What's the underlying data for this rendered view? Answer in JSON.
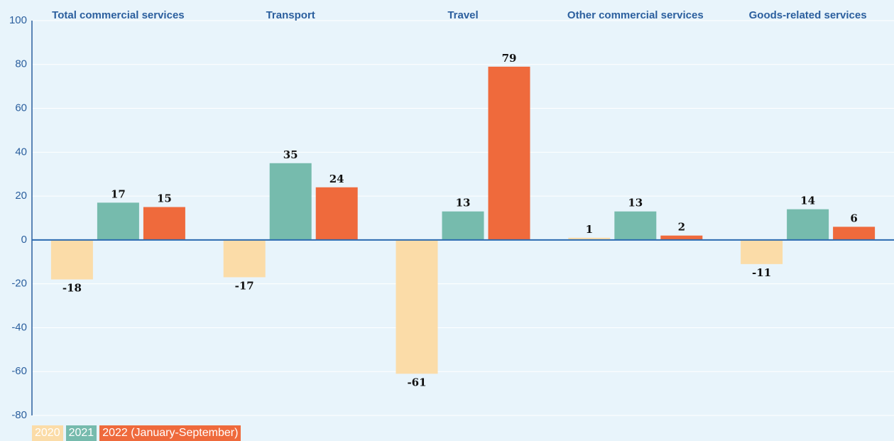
{
  "chart_data": {
    "type": "bar",
    "categories": [
      "Total commercial services",
      "Transport",
      "Travel",
      "Other commercial services",
      "Goods-related services"
    ],
    "series": [
      {
        "name": "2020",
        "color": "#fbdca8",
        "values": [
          -18,
          -17,
          -61,
          1,
          -11
        ]
      },
      {
        "name": "2021",
        "color": "#76bbad",
        "values": [
          17,
          35,
          13,
          13,
          14
        ]
      },
      {
        "name": "2022 (January-September)",
        "color": "#ef6a3c",
        "values": [
          15,
          24,
          79,
          2,
          6
        ]
      }
    ],
    "ylim": [
      -80,
      100
    ],
    "yticks": [
      -80,
      -60,
      -40,
      -20,
      0,
      20,
      40,
      60,
      80,
      100
    ],
    "grid": true,
    "legend": "bottom-left"
  }
}
